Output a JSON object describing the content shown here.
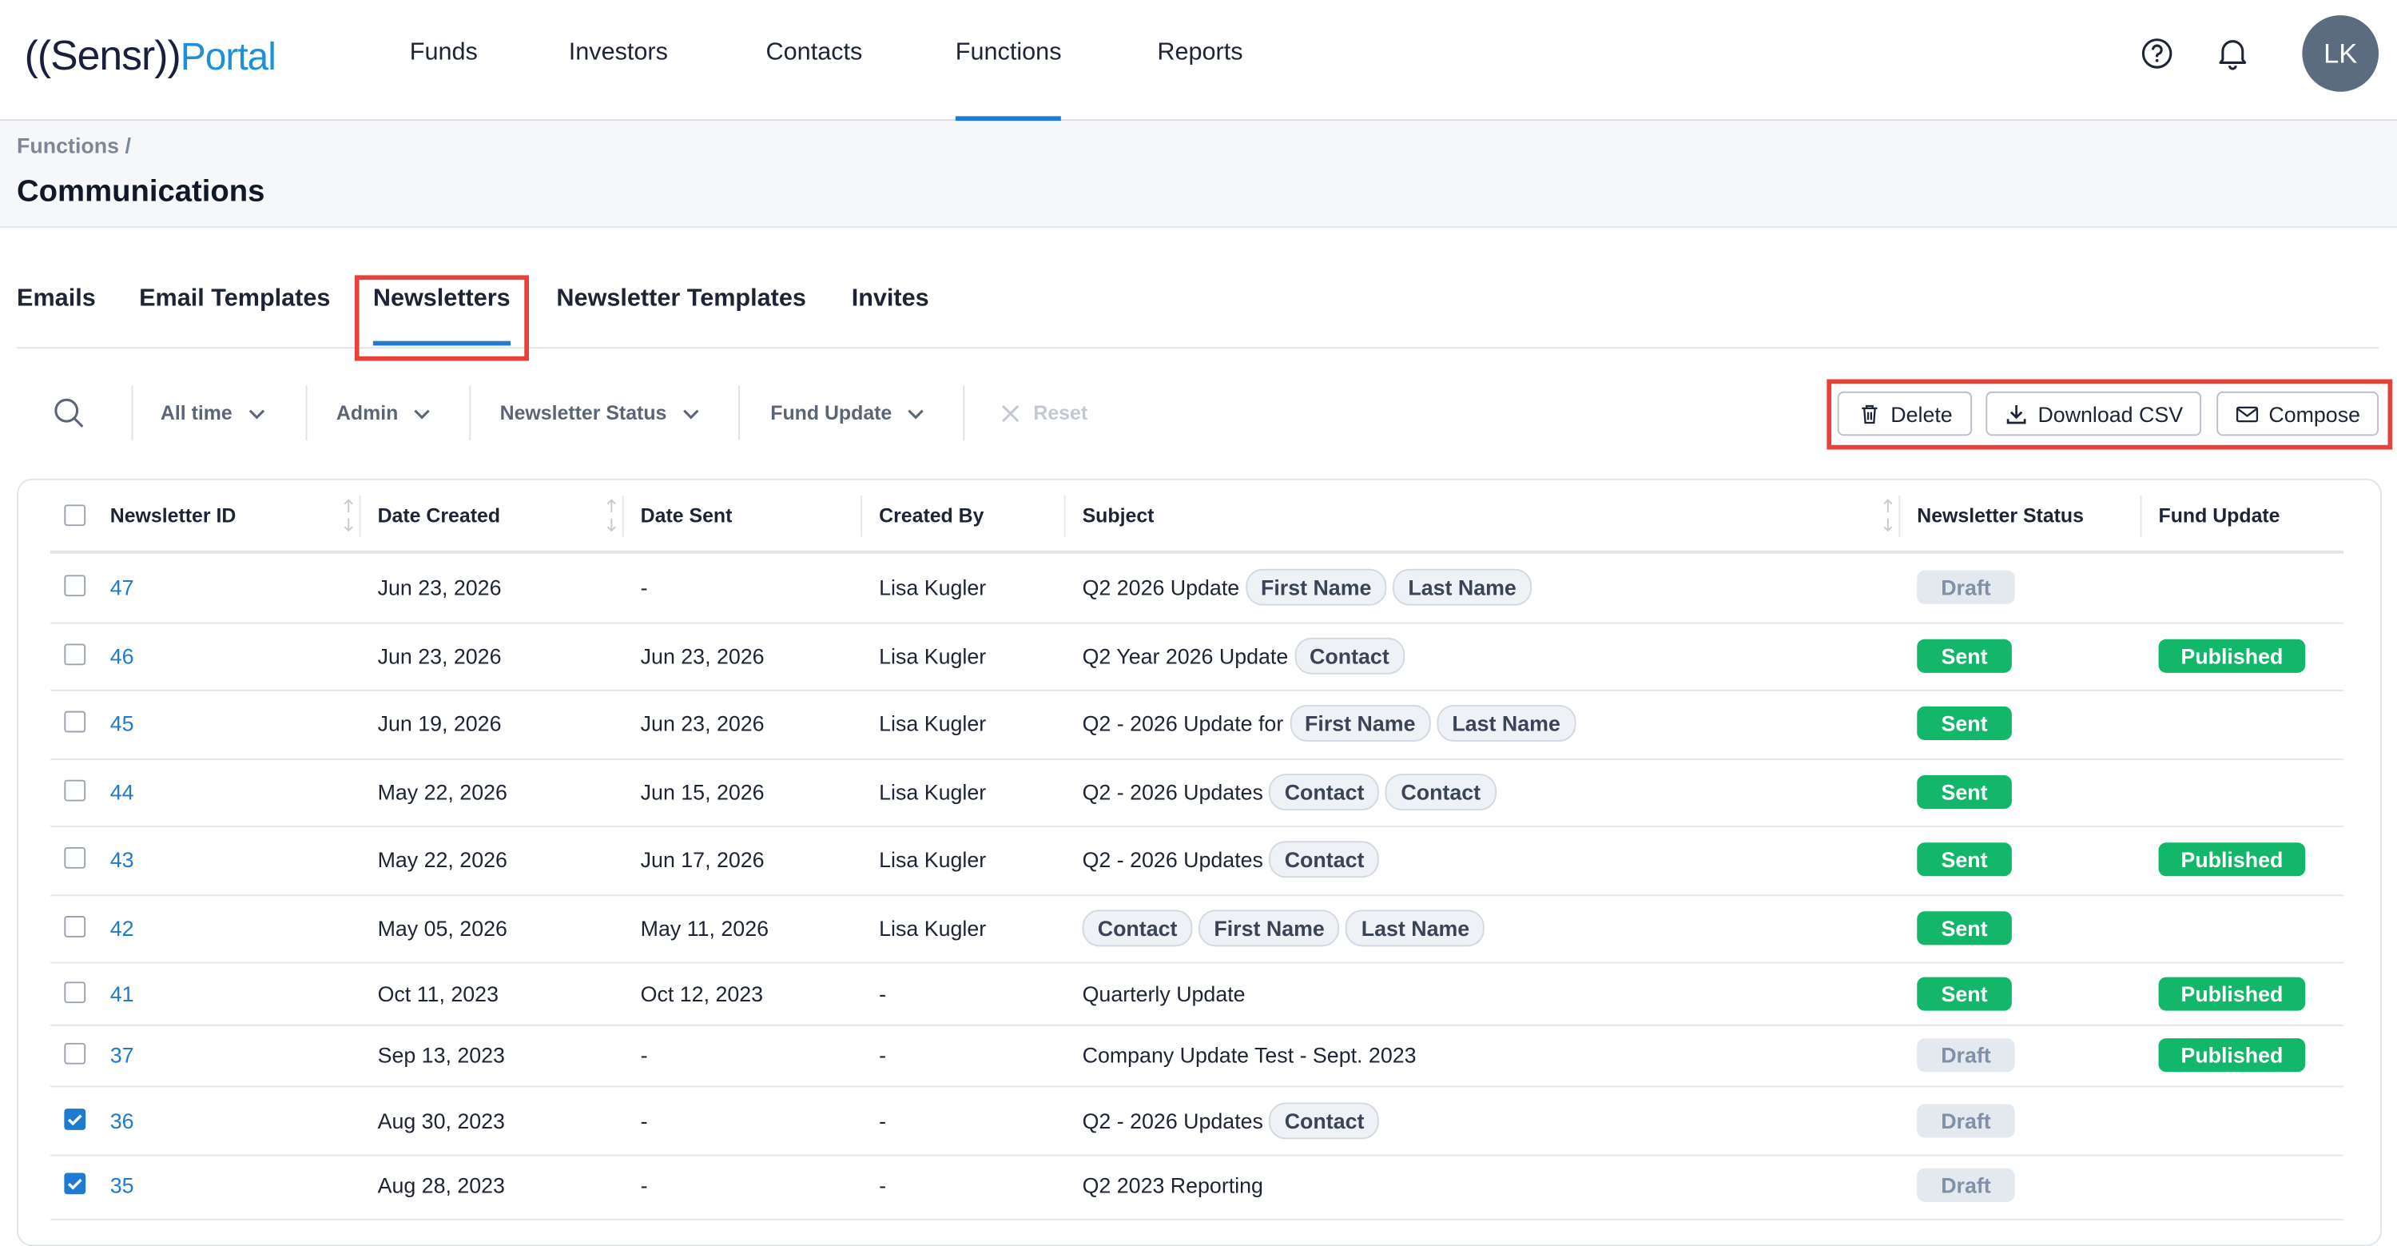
{
  "header": {
    "logo_brand": "((Sensr))",
    "logo_product": "Portal",
    "nav": [
      "Funds",
      "Investors",
      "Contacts",
      "Functions",
      "Reports"
    ],
    "active_nav": "Functions",
    "avatar": "LK"
  },
  "breadcrumb": "Functions /",
  "page_title": "Communications",
  "tabs": [
    "Emails",
    "Email Templates",
    "Newsletters",
    "Newsletter Templates",
    "Invites"
  ],
  "active_tab": "Newsletters",
  "filters": [
    "All time",
    "Admin",
    "Newsletter Status",
    "Fund Update"
  ],
  "reset": "Reset",
  "actions": [
    "Delete",
    "Download CSV",
    "Compose"
  ],
  "table": {
    "columns": [
      "Newsletter ID",
      "Date Created",
      "Date Sent",
      "Created By",
      "Subject",
      "Newsletter Status",
      "Fund Update"
    ],
    "rows": [
      {
        "id": "47",
        "date_created": "Jun 23, 2026",
        "date_sent": "-",
        "created_by": "Lisa Kugler",
        "subject": "Q2 2026 Update",
        "tags": [
          "First Name",
          "Last Name"
        ],
        "status": "Draft",
        "fund_update": null,
        "checked": false
      },
      {
        "id": "46",
        "date_created": "Jun 23, 2026",
        "date_sent": "Jun 23, 2026",
        "created_by": "Lisa Kugler",
        "subject": "Q2 Year 2026 Update",
        "tags": [
          "Contact"
        ],
        "status": "Sent",
        "fund_update": "Published",
        "checked": false
      },
      {
        "id": "45",
        "date_created": "Jun 19, 2026",
        "date_sent": "Jun 23, 2026",
        "created_by": "Lisa Kugler",
        "subject": "Q2 - 2026 Update for",
        "tags": [
          "First Name",
          "Last Name"
        ],
        "status": "Sent",
        "fund_update": null,
        "checked": false
      },
      {
        "id": "44",
        "date_created": "May 22, 2026",
        "date_sent": "Jun 15, 2026",
        "created_by": "Lisa Kugler",
        "subject": "Q2 - 2026 Updates",
        "tags": [
          "Contact",
          "Contact"
        ],
        "status": "Sent",
        "fund_update": null,
        "checked": false
      },
      {
        "id": "43",
        "date_created": "May 22, 2026",
        "date_sent": "Jun 17, 2026",
        "created_by": "Lisa Kugler",
        "subject": "Q2 - 2026 Updates",
        "tags": [
          "Contact"
        ],
        "status": "Sent",
        "fund_update": "Published",
        "checked": false
      },
      {
        "id": "42",
        "date_created": "May 05, 2026",
        "date_sent": "May 11, 2026",
        "created_by": "Lisa Kugler",
        "subject": null,
        "tags": [
          "Contact",
          "First Name",
          "Last Name"
        ],
        "status": "Sent",
        "fund_update": null,
        "checked": false
      },
      {
        "id": "41",
        "date_created": "Oct 11, 2023",
        "date_sent": "Oct 12, 2023",
        "created_by": "-",
        "subject": "Quarterly Update",
        "tags": [],
        "status": "Sent",
        "fund_update": "Published",
        "checked": false
      },
      {
        "id": "37",
        "date_created": "Sep 13, 2023",
        "date_sent": "-",
        "created_by": "-",
        "subject": "Company Update Test - Sept. 2023",
        "tags": [],
        "status": "Draft",
        "fund_update": "Published",
        "checked": false
      },
      {
        "id": "36",
        "date_created": "Aug 30, 2023",
        "date_sent": "-",
        "created_by": "-",
        "subject": "Q2 - 2026 Updates",
        "tags": [
          "Contact"
        ],
        "status": "Draft",
        "fund_update": null,
        "checked": true
      },
      {
        "id": "35",
        "date_created": "Aug 28, 2023",
        "date_sent": "-",
        "created_by": "-",
        "subject": "Q2 2023 Reporting",
        "tags": [],
        "status": "Draft",
        "fund_update": null,
        "checked": true
      }
    ]
  }
}
